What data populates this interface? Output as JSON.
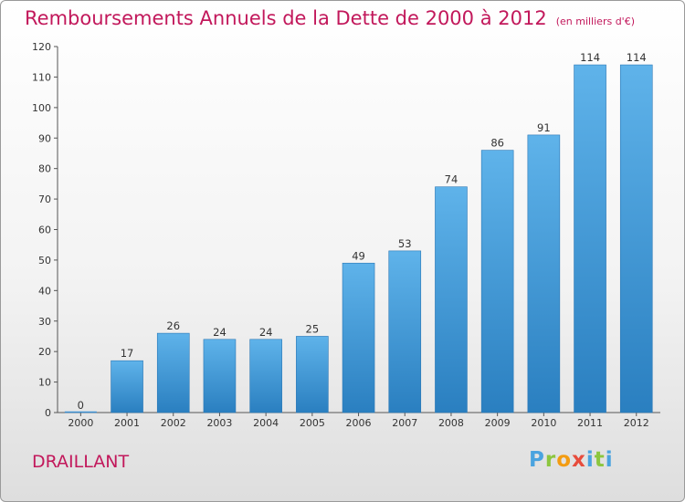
{
  "title": "Remboursements Annuels de la Dette de 2000 à 2012",
  "unit": "(en milliers d'€)",
  "commune": "DRAILLANT",
  "logo": {
    "p": "P",
    "r": "r",
    "o": "o",
    "x": "x",
    "i": "i",
    "t": "t",
    "i2": "i"
  },
  "chart_data": {
    "type": "bar",
    "title": "Remboursements Annuels de la Dette de 2000 à 2012",
    "subtitle": "(en milliers d'€)",
    "xlabel": "",
    "ylabel": "",
    "categories": [
      "2000",
      "2001",
      "2002",
      "2003",
      "2004",
      "2005",
      "2006",
      "2007",
      "2008",
      "2009",
      "2010",
      "2011",
      "2012"
    ],
    "values": [
      0,
      17,
      26,
      24,
      24,
      25,
      49,
      53,
      74,
      86,
      91,
      114,
      114
    ],
    "ylim": [
      0,
      120
    ],
    "yticks": [
      0,
      10,
      20,
      30,
      40,
      50,
      60,
      70,
      80,
      90,
      100,
      110,
      120
    ],
    "grid": false,
    "bar_color": "#3d92d4"
  }
}
